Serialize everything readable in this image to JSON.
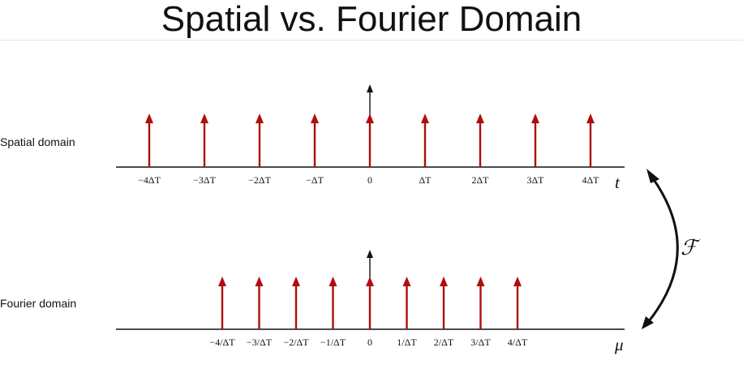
{
  "title": "Spatial vs. Fourier Domain",
  "spatial": {
    "label": "Spatial domain",
    "axis_variable": "t",
    "ticks": [
      "−4ΔT",
      "−3ΔT",
      "−2ΔT",
      "−ΔT",
      "0",
      "ΔT",
      "2ΔT",
      "3ΔT",
      "4ΔT"
    ],
    "impulse_count": 9
  },
  "fourier": {
    "label": "Fourier domain",
    "axis_variable": "μ",
    "ticks": [
      "−4/ΔT",
      "−3/ΔT",
      "−2/ΔT",
      "−1/ΔT",
      "0",
      "1/ΔT",
      "2/ΔT",
      "3/ΔT",
      "4/ΔT"
    ],
    "impulse_count": 9
  },
  "transform_symbol": "ℱ",
  "colors": {
    "impulse": "#b00d0d",
    "axis": "#111111",
    "title": "#111111"
  }
}
